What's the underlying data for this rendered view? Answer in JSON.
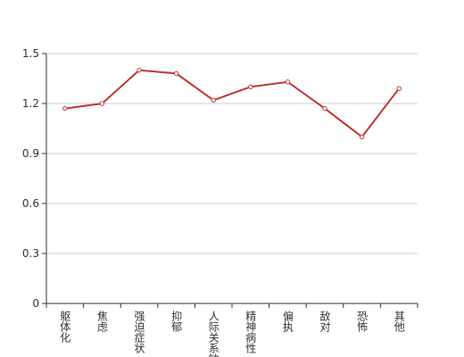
{
  "chart_data": {
    "type": "line",
    "categories": [
      "躯体化",
      "焦虑",
      "强迫症状",
      "抑郁",
      "人际关系敏感",
      "精神病性",
      "偏执",
      "敌对",
      "恐怖",
      "其他"
    ],
    "values": [
      1.17,
      1.2,
      1.4,
      1.38,
      1.22,
      1.3,
      1.33,
      1.17,
      1.0,
      1.29
    ],
    "color": "#c23531",
    "ylim": [
      0,
      1.5
    ],
    "yticks": [
      0,
      0.3,
      0.6,
      0.9,
      1.2,
      1.5
    ],
    "grid": true
  }
}
